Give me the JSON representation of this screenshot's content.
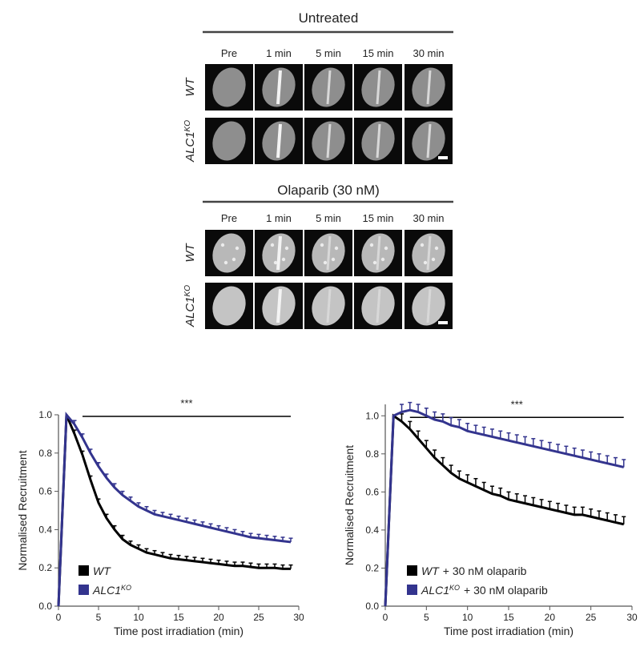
{
  "panels": [
    {
      "title": "Untreated",
      "columns": [
        "Pre",
        "1 min",
        "5 min",
        "15 min",
        "30 min"
      ],
      "rows": [
        {
          "text": "WT"
        },
        {
          "text": "ALC1",
          "sup": "KO"
        }
      ]
    },
    {
      "title": "Olaparib (30 nM)",
      "columns": [
        "Pre",
        "1 min",
        "5 min",
        "15 min",
        "30 min"
      ],
      "rows": [
        {
          "text": "WT"
        },
        {
          "text": "ALC1",
          "sup": "KO"
        }
      ]
    }
  ],
  "chart_data": [
    {
      "type": "line",
      "xlabel": "Time post irradiation (min)",
      "ylabel": "Normalised Recruitment",
      "x": [
        0,
        1,
        2,
        3,
        4,
        5,
        6,
        7,
        8,
        9,
        10,
        11,
        12,
        13,
        14,
        15,
        16,
        17,
        18,
        19,
        20,
        21,
        22,
        23,
        24,
        25,
        26,
        27,
        28,
        29
      ],
      "xlim": [
        0,
        30
      ],
      "xticks": [
        0,
        5,
        10,
        15,
        20,
        25,
        30
      ],
      "ylim": [
        0,
        1.0
      ],
      "yticks": [
        {
          "value": 0,
          "label": "0.0"
        },
        0.2,
        0.4,
        0.6,
        0.8,
        {
          "value": 1,
          "label": "1.0"
        }
      ],
      "legend": "lower left",
      "annotation": {
        "text": "***",
        "x_range": [
          3,
          29
        ],
        "y": 1.0
      },
      "series": [
        {
          "name": "WT",
          "color": "#000000",
          "values": [
            0,
            1.0,
            0.9,
            0.79,
            0.66,
            0.54,
            0.46,
            0.4,
            0.35,
            0.32,
            0.3,
            0.28,
            0.27,
            0.26,
            0.25,
            0.245,
            0.24,
            0.235,
            0.23,
            0.225,
            0.22,
            0.215,
            0.21,
            0.21,
            0.205,
            0.2,
            0.2,
            0.2,
            0.195,
            0.195
          ],
          "errors": [
            0,
            0,
            0.02,
            0.02,
            0.02,
            0.02,
            0.02,
            0.02,
            0.02,
            0.02,
            0.02,
            0.02,
            0.02,
            0.02,
            0.02,
            0.02,
            0.02,
            0.02,
            0.02,
            0.02,
            0.02,
            0.02,
            0.02,
            0.02,
            0.02,
            0.02,
            0.02,
            0.02,
            0.02,
            0.02
          ]
        },
        {
          "name": "ALC1",
          "name_sup": "KO",
          "color": "#33348e",
          "values": [
            0,
            1.0,
            0.95,
            0.88,
            0.8,
            0.73,
            0.67,
            0.62,
            0.58,
            0.55,
            0.52,
            0.5,
            0.48,
            0.47,
            0.46,
            0.45,
            0.44,
            0.43,
            0.42,
            0.41,
            0.4,
            0.39,
            0.38,
            0.37,
            0.36,
            0.355,
            0.35,
            0.345,
            0.34,
            0.335
          ],
          "errors": [
            0,
            0,
            0.02,
            0.02,
            0.02,
            0.02,
            0.02,
            0.02,
            0.02,
            0.02,
            0.02,
            0.02,
            0.02,
            0.02,
            0.02,
            0.02,
            0.02,
            0.02,
            0.02,
            0.02,
            0.02,
            0.02,
            0.02,
            0.02,
            0.02,
            0.02,
            0.02,
            0.02,
            0.02,
            0.02
          ]
        }
      ]
    },
    {
      "type": "line",
      "xlabel": "Time post irradiation (min)",
      "ylabel": "Normalised Recruitment",
      "x": [
        0,
        1,
        2,
        3,
        4,
        5,
        6,
        7,
        8,
        9,
        10,
        11,
        12,
        13,
        14,
        15,
        16,
        17,
        18,
        19,
        20,
        21,
        22,
        23,
        24,
        25,
        26,
        27,
        28,
        29
      ],
      "xlim": [
        0,
        30
      ],
      "xticks": [
        0,
        5,
        10,
        15,
        20,
        25,
        30
      ],
      "ylim": [
        0,
        1.06
      ],
      "yticks": [
        {
          "value": 0,
          "label": "0.0"
        },
        0.2,
        0.4,
        0.6,
        0.8,
        {
          "value": 1,
          "label": "1.0"
        }
      ],
      "legend": "lower left",
      "annotation": {
        "text": "***",
        "x_range": [
          3,
          29
        ],
        "y": 1.0
      },
      "series": [
        {
          "name": "WT",
          "name_suffix": "+ 30 nM olaparib",
          "color": "#000000",
          "values": [
            0,
            1.0,
            0.97,
            0.93,
            0.88,
            0.83,
            0.78,
            0.74,
            0.7,
            0.67,
            0.65,
            0.63,
            0.61,
            0.59,
            0.58,
            0.56,
            0.55,
            0.54,
            0.53,
            0.52,
            0.51,
            0.5,
            0.49,
            0.48,
            0.48,
            0.47,
            0.46,
            0.45,
            0.44,
            0.43
          ],
          "errors": [
            0,
            0,
            0.04,
            0.04,
            0.04,
            0.04,
            0.04,
            0.04,
            0.04,
            0.04,
            0.04,
            0.04,
            0.04,
            0.04,
            0.04,
            0.04,
            0.04,
            0.04,
            0.04,
            0.04,
            0.04,
            0.04,
            0.04,
            0.04,
            0.04,
            0.04,
            0.04,
            0.04,
            0.04,
            0.04
          ]
        },
        {
          "name": "ALC1",
          "name_sup": "KO",
          "name_suffix": "+ 30 nM olaparib",
          "color": "#33348e",
          "values": [
            0,
            1.0,
            1.02,
            1.03,
            1.02,
            1.0,
            0.98,
            0.97,
            0.95,
            0.94,
            0.92,
            0.91,
            0.9,
            0.89,
            0.88,
            0.87,
            0.86,
            0.85,
            0.84,
            0.83,
            0.82,
            0.81,
            0.8,
            0.79,
            0.78,
            0.77,
            0.76,
            0.75,
            0.74,
            0.73
          ],
          "errors": [
            0,
            0,
            0.04,
            0.04,
            0.04,
            0.04,
            0.04,
            0.04,
            0.04,
            0.04,
            0.04,
            0.04,
            0.04,
            0.04,
            0.04,
            0.04,
            0.04,
            0.04,
            0.04,
            0.04,
            0.04,
            0.04,
            0.04,
            0.04,
            0.04,
            0.04,
            0.04,
            0.04,
            0.04,
            0.04
          ]
        }
      ]
    }
  ]
}
